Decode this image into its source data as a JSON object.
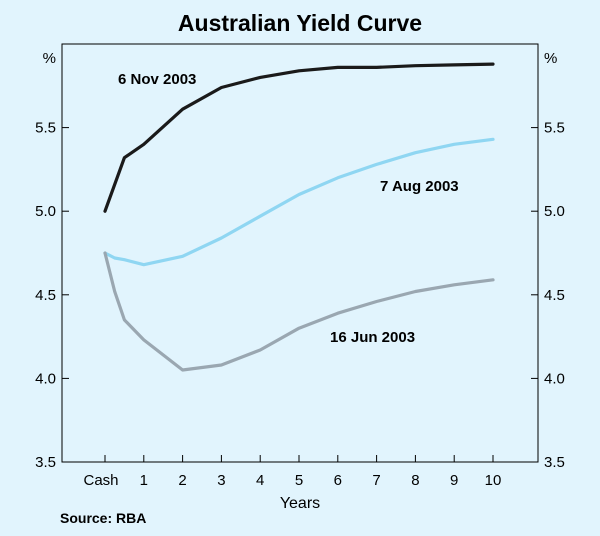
{
  "chart_data": {
    "type": "line",
    "title": "Australian Yield Curve",
    "xlabel": "Years",
    "ylabel_left": "%",
    "ylabel_right": "%",
    "x": [
      "Cash",
      "0.25",
      "0.5",
      "1",
      "2",
      "3",
      "4",
      "5",
      "6",
      "7",
      "8",
      "9",
      "10"
    ],
    "xticks": [
      "Cash",
      "1",
      "2",
      "3",
      "4",
      "5",
      "6",
      "7",
      "8",
      "9",
      "10"
    ],
    "ylim": [
      3.5,
      6.0
    ],
    "yticks": [
      "3.5",
      "4.0",
      "4.5",
      "5.0",
      "5.5"
    ],
    "grid": false,
    "series": [
      {
        "name": "6 Nov 2003",
        "color": "#1a1a1a",
        "points": [
          [
            0,
            5.0
          ],
          [
            0.5,
            5.32
          ],
          [
            1,
            5.4
          ],
          [
            2,
            5.61
          ],
          [
            3,
            5.74
          ],
          [
            4,
            5.8
          ],
          [
            5,
            5.84
          ],
          [
            6,
            5.86
          ],
          [
            7,
            5.86
          ],
          [
            8,
            5.87
          ],
          [
            9,
            5.875
          ],
          [
            10,
            5.88
          ]
        ]
      },
      {
        "name": "7 Aug 2003",
        "color": "#8fd6f2",
        "points": [
          [
            0,
            4.75
          ],
          [
            0.25,
            4.72
          ],
          [
            0.5,
            4.71
          ],
          [
            1,
            4.68
          ],
          [
            2,
            4.73
          ],
          [
            3,
            4.84
          ],
          [
            4,
            4.97
          ],
          [
            5,
            5.1
          ],
          [
            6,
            5.2
          ],
          [
            7,
            5.28
          ],
          [
            8,
            5.35
          ],
          [
            9,
            5.4
          ],
          [
            10,
            5.43
          ]
        ]
      },
      {
        "name": "16 Jun 2003",
        "color": "#9aa7b1",
        "points": [
          [
            0,
            4.75
          ],
          [
            0.25,
            4.52
          ],
          [
            0.5,
            4.35
          ],
          [
            1,
            4.23
          ],
          [
            2,
            4.05
          ],
          [
            3,
            4.08
          ],
          [
            4,
            4.17
          ],
          [
            5,
            4.3
          ],
          [
            6,
            4.39
          ],
          [
            7,
            4.46
          ],
          [
            8,
            4.52
          ],
          [
            9,
            4.56
          ],
          [
            10,
            4.59
          ]
        ]
      }
    ]
  },
  "source": "Source: RBA"
}
